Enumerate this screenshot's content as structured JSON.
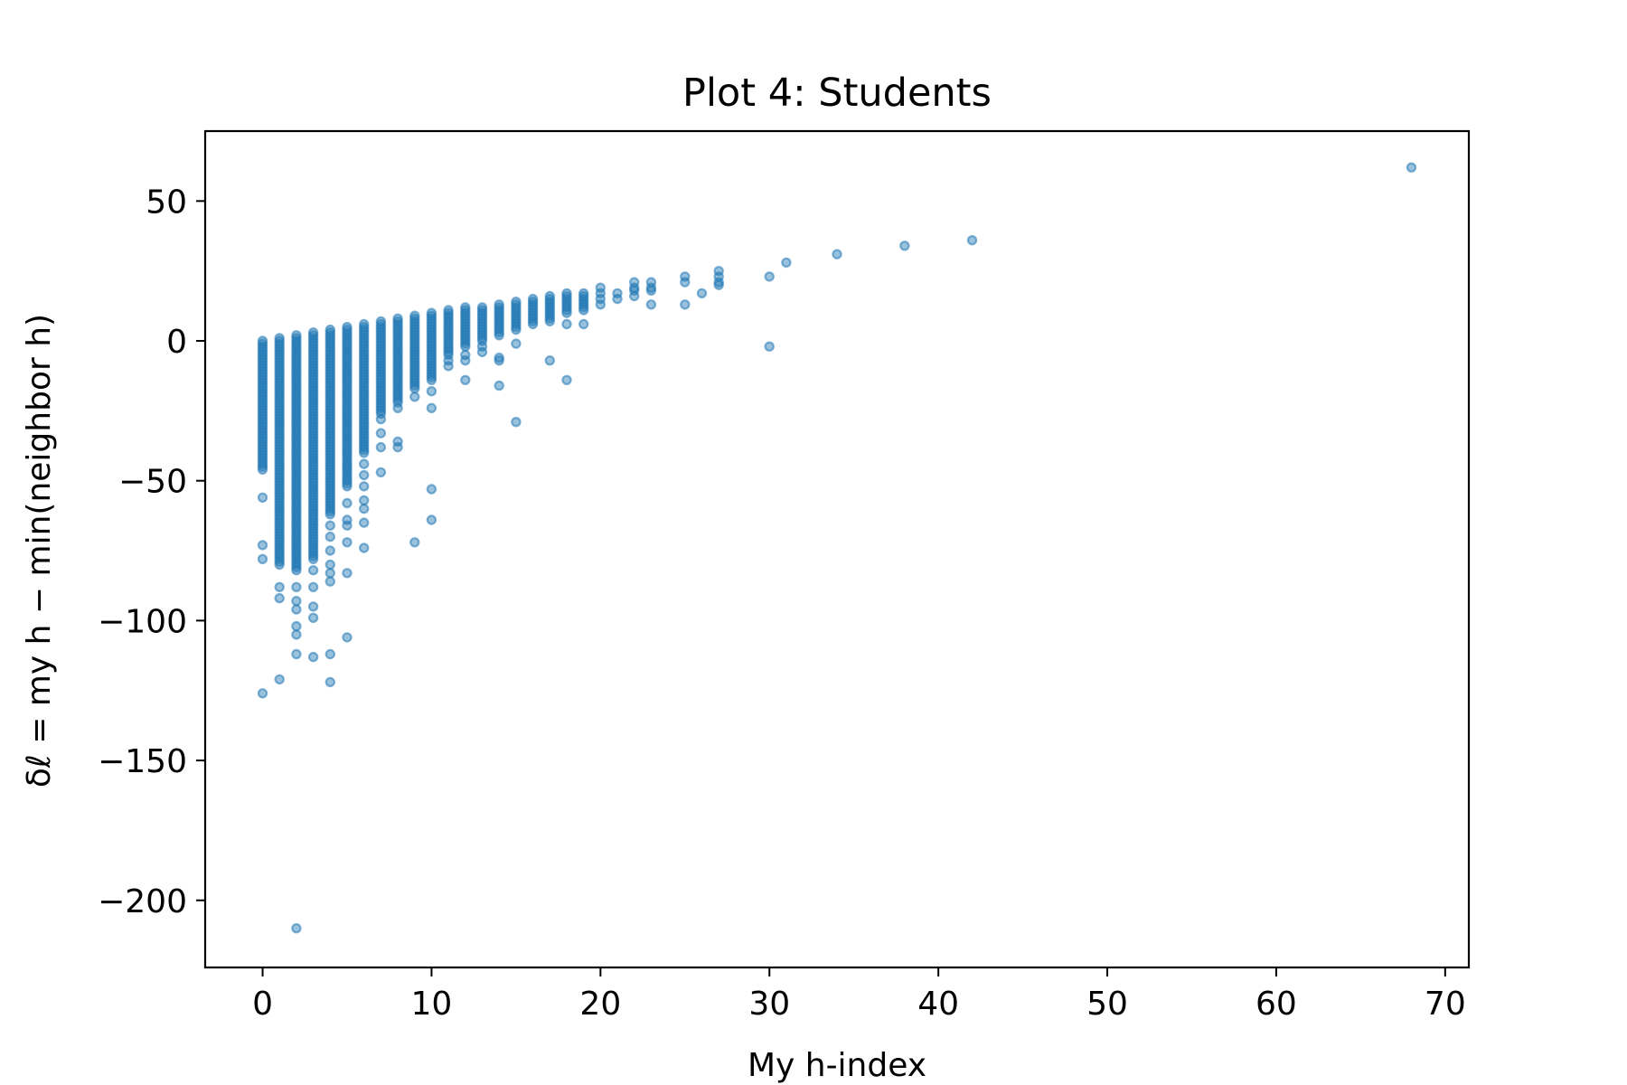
{
  "chart_data": {
    "type": "scatter",
    "title": "Plot 4: Students",
    "xlabel": "My h-index",
    "ylabel": "δℓ = my h − min(neighbor h)",
    "xlim": [
      -3.4,
      71.4
    ],
    "ylim": [
      -224,
      75
    ],
    "xticks": [
      0,
      10,
      20,
      30,
      40,
      50,
      60,
      70
    ],
    "yticks": [
      50,
      0,
      -50,
      -100,
      -150,
      -200
    ],
    "xtick_labels": [
      "0",
      "10",
      "20",
      "30",
      "40",
      "50",
      "60",
      "70"
    ],
    "ytick_labels": [
      "50",
      "0",
      "−50",
      "−100",
      "−150",
      "−200"
    ],
    "grid": false,
    "color": "#1f77b4",
    "marker_alpha": 0.55,
    "column_ranges": [
      {
        "x": 0,
        "ymin": -46,
        "ymax": 0
      },
      {
        "x": 1,
        "ymin": -80,
        "ymax": 1
      },
      {
        "x": 2,
        "ymin": -82,
        "ymax": 2
      },
      {
        "x": 3,
        "ymin": -78,
        "ymax": 3
      },
      {
        "x": 4,
        "ymin": -62,
        "ymax": 4
      },
      {
        "x": 5,
        "ymin": -52,
        "ymax": 5
      },
      {
        "x": 6,
        "ymin": -40,
        "ymax": 6
      },
      {
        "x": 7,
        "ymin": -26,
        "ymax": 7
      },
      {
        "x": 8,
        "ymin": -22,
        "ymax": 8
      },
      {
        "x": 9,
        "ymin": -17,
        "ymax": 9
      },
      {
        "x": 10,
        "ymin": -14,
        "ymax": 10
      },
      {
        "x": 11,
        "ymin": -5,
        "ymax": 11
      },
      {
        "x": 12,
        "ymin": -2,
        "ymax": 12
      },
      {
        "x": 13,
        "ymin": 0,
        "ymax": 12
      },
      {
        "x": 14,
        "ymin": 2,
        "ymax": 13
      },
      {
        "x": 15,
        "ymin": 4,
        "ymax": 14
      },
      {
        "x": 16,
        "ymin": 6,
        "ymax": 15
      },
      {
        "x": 17,
        "ymin": 8,
        "ymax": 16
      },
      {
        "x": 18,
        "ymin": 10,
        "ymax": 17
      },
      {
        "x": 19,
        "ymin": 11,
        "ymax": 17
      }
    ],
    "points": [
      {
        "x": 0,
        "y": -56
      },
      {
        "x": 0,
        "y": -73
      },
      {
        "x": 0,
        "y": -78
      },
      {
        "x": 0,
        "y": -126
      },
      {
        "x": 1,
        "y": -88
      },
      {
        "x": 1,
        "y": -92
      },
      {
        "x": 1,
        "y": -121
      },
      {
        "x": 2,
        "y": -88
      },
      {
        "x": 2,
        "y": -93
      },
      {
        "x": 2,
        "y": -96
      },
      {
        "x": 2,
        "y": -102
      },
      {
        "x": 2,
        "y": -105
      },
      {
        "x": 2,
        "y": -112
      },
      {
        "x": 2,
        "y": -210
      },
      {
        "x": 3,
        "y": -82
      },
      {
        "x": 3,
        "y": -88
      },
      {
        "x": 3,
        "y": -95
      },
      {
        "x": 3,
        "y": -99
      },
      {
        "x": 3,
        "y": -113
      },
      {
        "x": 4,
        "y": -66
      },
      {
        "x": 4,
        "y": -70
      },
      {
        "x": 4,
        "y": -75
      },
      {
        "x": 4,
        "y": -80
      },
      {
        "x": 4,
        "y": -83
      },
      {
        "x": 4,
        "y": -86
      },
      {
        "x": 4,
        "y": -112
      },
      {
        "x": 4,
        "y": -122
      },
      {
        "x": 5,
        "y": -58
      },
      {
        "x": 5,
        "y": -64
      },
      {
        "x": 5,
        "y": -66
      },
      {
        "x": 5,
        "y": -72
      },
      {
        "x": 5,
        "y": -83
      },
      {
        "x": 5,
        "y": -106
      },
      {
        "x": 6,
        "y": -44
      },
      {
        "x": 6,
        "y": -48
      },
      {
        "x": 6,
        "y": -52
      },
      {
        "x": 6,
        "y": -57
      },
      {
        "x": 6,
        "y": -60
      },
      {
        "x": 6,
        "y": -65
      },
      {
        "x": 6,
        "y": -74
      },
      {
        "x": 7,
        "y": -28
      },
      {
        "x": 7,
        "y": -33
      },
      {
        "x": 7,
        "y": -38
      },
      {
        "x": 7,
        "y": -47
      },
      {
        "x": 8,
        "y": -24
      },
      {
        "x": 8,
        "y": -36
      },
      {
        "x": 8,
        "y": -38
      },
      {
        "x": 9,
        "y": -20
      },
      {
        "x": 9,
        "y": -72
      },
      {
        "x": 10,
        "y": -18
      },
      {
        "x": 10,
        "y": -24
      },
      {
        "x": 10,
        "y": -53
      },
      {
        "x": 10,
        "y": -64
      },
      {
        "x": 11,
        "y": -7
      },
      {
        "x": 11,
        "y": -9
      },
      {
        "x": 12,
        "y": -5
      },
      {
        "x": 12,
        "y": -7
      },
      {
        "x": 12,
        "y": -14
      },
      {
        "x": 13,
        "y": -2
      },
      {
        "x": 13,
        "y": -4
      },
      {
        "x": 14,
        "y": -6
      },
      {
        "x": 14,
        "y": -7
      },
      {
        "x": 14,
        "y": -16
      },
      {
        "x": 15,
        "y": -29
      },
      {
        "x": 15,
        "y": -1
      },
      {
        "x": 17,
        "y": -7
      },
      {
        "x": 17,
        "y": 7
      },
      {
        "x": 18,
        "y": -14
      },
      {
        "x": 18,
        "y": 6
      },
      {
        "x": 19,
        "y": 6
      },
      {
        "x": 20,
        "y": 13
      },
      {
        "x": 20,
        "y": 15
      },
      {
        "x": 20,
        "y": 17
      },
      {
        "x": 20,
        "y": 19
      },
      {
        "x": 21,
        "y": 15
      },
      {
        "x": 21,
        "y": 17
      },
      {
        "x": 22,
        "y": 16
      },
      {
        "x": 22,
        "y": 18
      },
      {
        "x": 22,
        "y": 19
      },
      {
        "x": 22,
        "y": 21
      },
      {
        "x": 23,
        "y": 13
      },
      {
        "x": 23,
        "y": 18
      },
      {
        "x": 23,
        "y": 19
      },
      {
        "x": 23,
        "y": 21
      },
      {
        "x": 25,
        "y": 13
      },
      {
        "x": 25,
        "y": 21
      },
      {
        "x": 25,
        "y": 23
      },
      {
        "x": 26,
        "y": 17
      },
      {
        "x": 27,
        "y": 20
      },
      {
        "x": 27,
        "y": 21
      },
      {
        "x": 27,
        "y": 23
      },
      {
        "x": 27,
        "y": 25
      },
      {
        "x": 30,
        "y": -2
      },
      {
        "x": 30,
        "y": 23
      },
      {
        "x": 31,
        "y": 28
      },
      {
        "x": 34,
        "y": 31
      },
      {
        "x": 38,
        "y": 34
      },
      {
        "x": 42,
        "y": 36
      },
      {
        "x": 68,
        "y": 62
      }
    ]
  }
}
